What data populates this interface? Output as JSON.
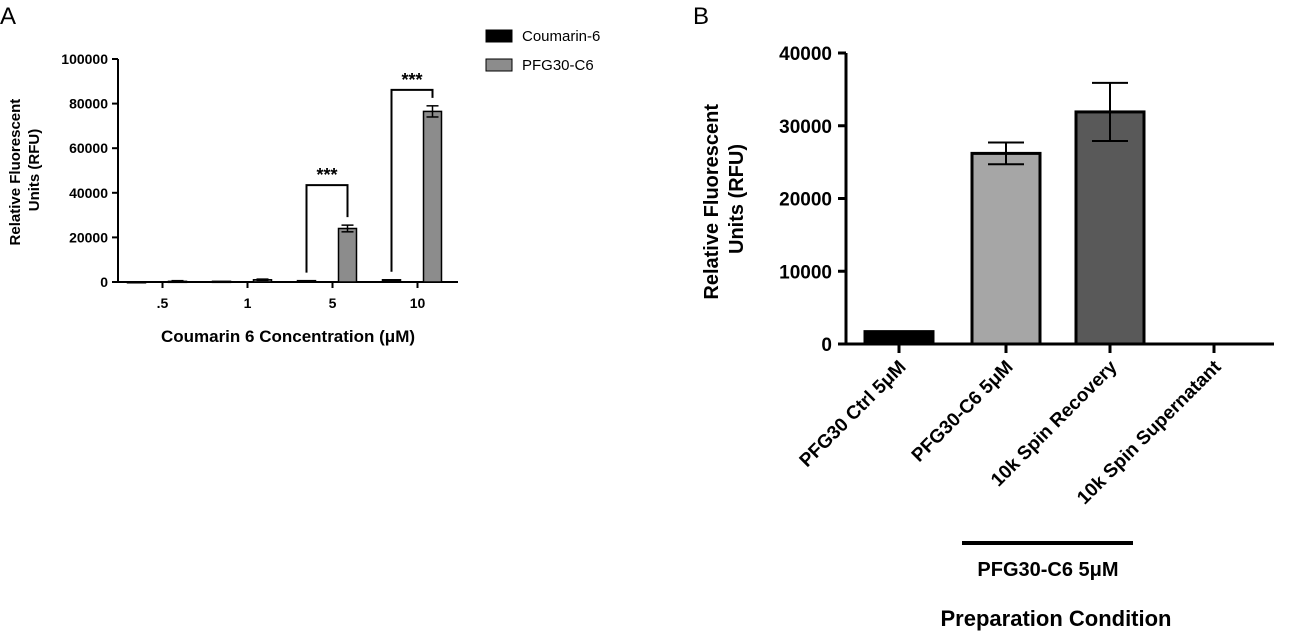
{
  "chart_data": [
    {
      "type": "bar",
      "panel_label": "A",
      "categories": [
        ".5",
        "1",
        "5",
        "10"
      ],
      "series": [
        {
          "name": "Coumarin-6",
          "values": [
            100,
            300,
            600,
            1000
          ],
          "errors": [
            0,
            0,
            0,
            0
          ],
          "color": "#000000"
        },
        {
          "name": "PFG30-C6",
          "values": [
            300,
            1000,
            24000,
            76500
          ],
          "errors": [
            300,
            300,
            1500,
            2500
          ],
          "color": "#8c8c8c"
        }
      ],
      "title": "",
      "xlabel": "Coumarin 6 Concentration (μM)",
      "ylabel": "Relative Fluorescent Units (RFU)",
      "ylim": [
        0,
        100000
      ],
      "yticks": [
        "0",
        "20000",
        "40000",
        "60000",
        "80000",
        "100000"
      ],
      "legend_position": "top-right",
      "annotations": [
        {
          "category": "5",
          "text": "***"
        },
        {
          "category": "10",
          "text": "***"
        }
      ]
    },
    {
      "type": "bar",
      "panel_label": "B",
      "categories": [
        "PFG30 Ctrl 5μM",
        "PFG30-C6 5μM",
        "10k Spin Recovery",
        "10k Spin Supernatant"
      ],
      "values": [
        1700,
        26200,
        31900,
        0
      ],
      "errors": [
        0,
        1500,
        4000,
        0
      ],
      "colors": [
        "#000000",
        "#a6a6a6",
        "#595959",
        "#ffffff"
      ],
      "title": "",
      "xlabel": "Preparation Condition",
      "ylabel": "Relative Fluorescent Units (RFU)",
      "ylim": [
        0,
        40000
      ],
      "yticks": [
        "0",
        "10000",
        "20000",
        "30000",
        "40000"
      ],
      "group_label": "PFG30-C6 5μM"
    }
  ]
}
